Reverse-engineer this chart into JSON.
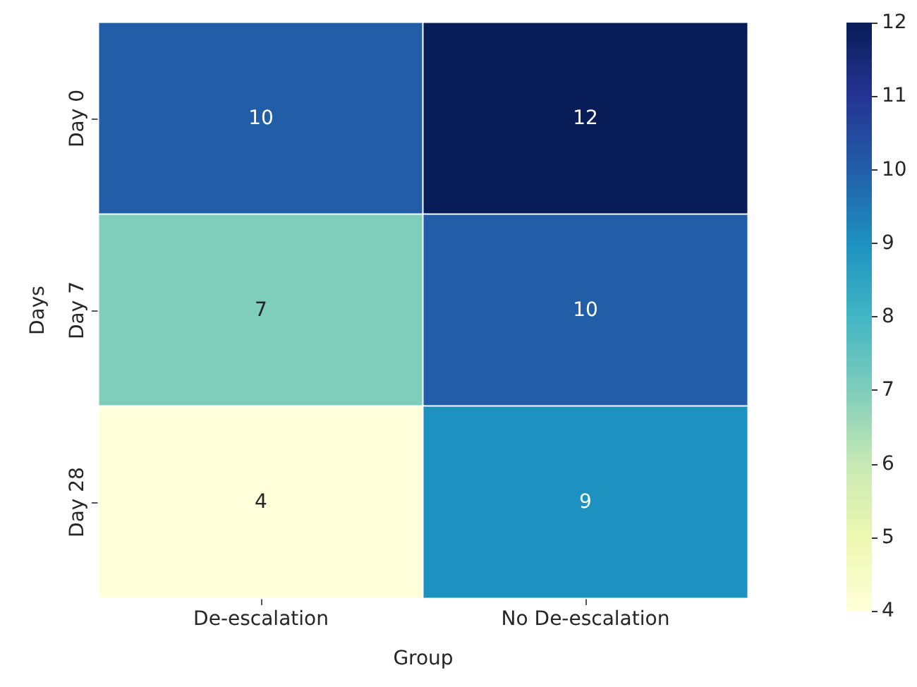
{
  "chart_data": {
    "type": "heatmap",
    "xlabel": "Group",
    "ylabel": "Days",
    "categories": [
      "De-escalation",
      "No De-escalation"
    ],
    "y_categories": [
      "Day 0",
      "Day 7",
      "Day 28"
    ],
    "cells": [
      [
        10,
        12
      ],
      [
        7,
        10
      ],
      [
        4,
        9
      ]
    ],
    "clim": [
      4,
      12
    ],
    "cticks": [
      4,
      5,
      6,
      7,
      8,
      9,
      10,
      11,
      12
    ],
    "data_labels": true
  }
}
